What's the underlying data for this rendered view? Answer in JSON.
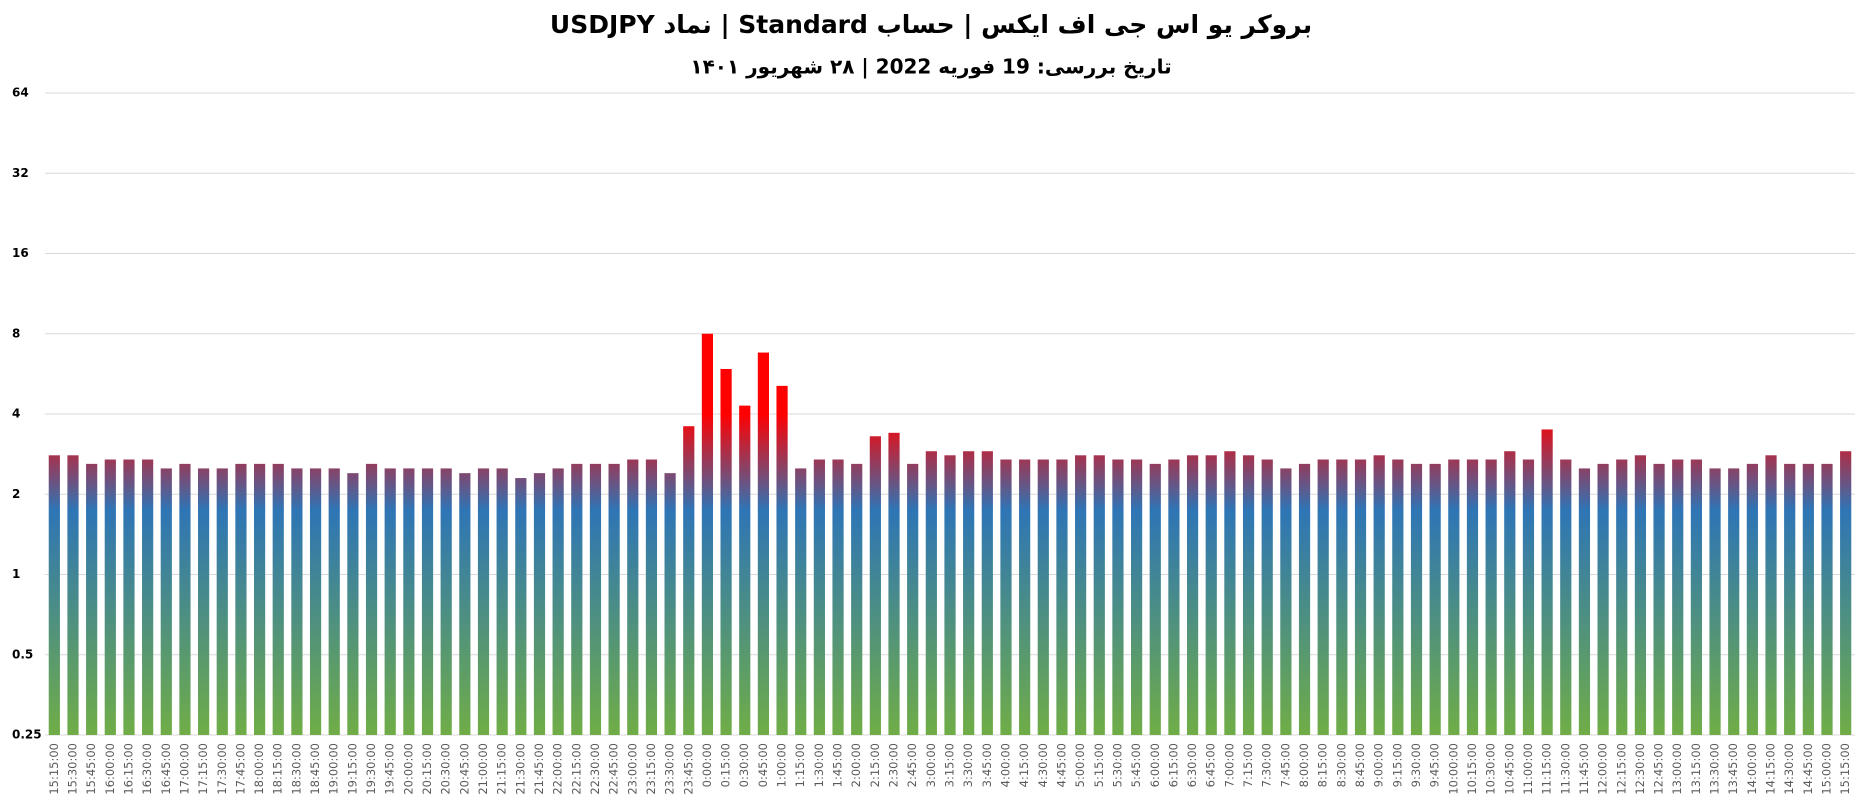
{
  "chart_data": {
    "type": "bar",
    "title": "بروکر یو اس جی اف ایکس | حساب Standard | نماد USDJPY",
    "subtitle": "تاریخ بررسی: 19 فوریه 2022 | ۲۸ شهریور ۱۴۰۱",
    "categories": [
      "15:15:00",
      "15:30:00",
      "15:45:00",
      "16:00:00",
      "16:15:00",
      "16:30:00",
      "16:45:00",
      "17:00:00",
      "17:15:00",
      "17:30:00",
      "17:45:00",
      "18:00:00",
      "18:15:00",
      "18:30:00",
      "18:45:00",
      "19:00:00",
      "19:15:00",
      "19:30:00",
      "19:45:00",
      "20:00:00",
      "20:15:00",
      "20:30:00",
      "20:45:00",
      "21:00:00",
      "21:15:00",
      "21:30:00",
      "21:45:00",
      "22:00:00",
      "22:15:00",
      "22:30:00",
      "22:45:00",
      "23:00:00",
      "23:15:00",
      "23:30:00",
      "23:45:00",
      "0:00:00",
      "0:15:00",
      "0:30:00",
      "0:45:00",
      "1:00:00",
      "1:15:00",
      "1:30:00",
      "1:45:00",
      "2:00:00",
      "2:15:00",
      "2:30:00",
      "2:45:00",
      "3:00:00",
      "3:15:00",
      "3:30:00",
      "3:45:00",
      "4:00:00",
      "4:15:00",
      "4:30:00",
      "4:45:00",
      "5:00:00",
      "5:15:00",
      "5:30:00",
      "5:45:00",
      "6:00:00",
      "6:15:00",
      "6:30:00",
      "6:45:00",
      "7:00:00",
      "7:15:00",
      "7:30:00",
      "7:45:00",
      "8:00:00",
      "8:15:00",
      "8:30:00",
      "8:45:00",
      "9:00:00",
      "9:15:00",
      "9:30:00",
      "9:45:00",
      "10:00:00",
      "10:15:00",
      "10:30:00",
      "10:45:00",
      "11:00:00",
      "11:15:00",
      "11:30:00",
      "11:45:00",
      "12:00:00",
      "12:15:00",
      "12:30:00",
      "12:45:00",
      "13:00:00",
      "13:15:00",
      "13:30:00",
      "13:45:00",
      "14:00:00",
      "14:15:00",
      "14:30:00",
      "14:45:00",
      "15:00:00",
      "15:15:00"
    ],
    "values": [
      2.8,
      2.8,
      2.6,
      2.7,
      2.7,
      2.7,
      2.5,
      2.6,
      2.5,
      2.5,
      2.6,
      2.6,
      2.6,
      2.5,
      2.5,
      2.5,
      2.4,
      2.6,
      2.5,
      2.5,
      2.5,
      2.5,
      2.4,
      2.5,
      2.5,
      2.3,
      2.4,
      2.5,
      2.6,
      2.6,
      2.6,
      2.7,
      2.7,
      2.4,
      3.6,
      8,
      5.9,
      4.3,
      6.8,
      5.1,
      2.5,
      2.7,
      2.7,
      2.6,
      3.3,
      3.4,
      2.6,
      2.9,
      2.8,
      2.9,
      2.9,
      2.7,
      2.7,
      2.7,
      2.7,
      2.8,
      2.8,
      2.7,
      2.7,
      2.6,
      2.7,
      2.8,
      2.8,
      2.9,
      2.8,
      2.7,
      2.5,
      2.6,
      2.7,
      2.7,
      2.7,
      2.8,
      2.7,
      2.6,
      2.6,
      2.7,
      2.7,
      2.7,
      2.9,
      2.7,
      3.5,
      2.7,
      2.5,
      2.6,
      2.7,
      2.8,
      2.6,
      2.7,
      2.7,
      2.5,
      2.5,
      2.6,
      2.8,
      2.6,
      2.6,
      2.6,
      2.9
    ],
    "gradient_colors": [
      "#70ad47",
      "#2e75b6",
      "#ff0000"
    ],
    "log_scale": true,
    "log_base": 2,
    "ylim": [
      0.25,
      64
    ],
    "yticks": [
      0.25,
      0.5,
      1,
      2,
      4,
      8,
      16,
      32,
      64
    ],
    "grid": true
  }
}
